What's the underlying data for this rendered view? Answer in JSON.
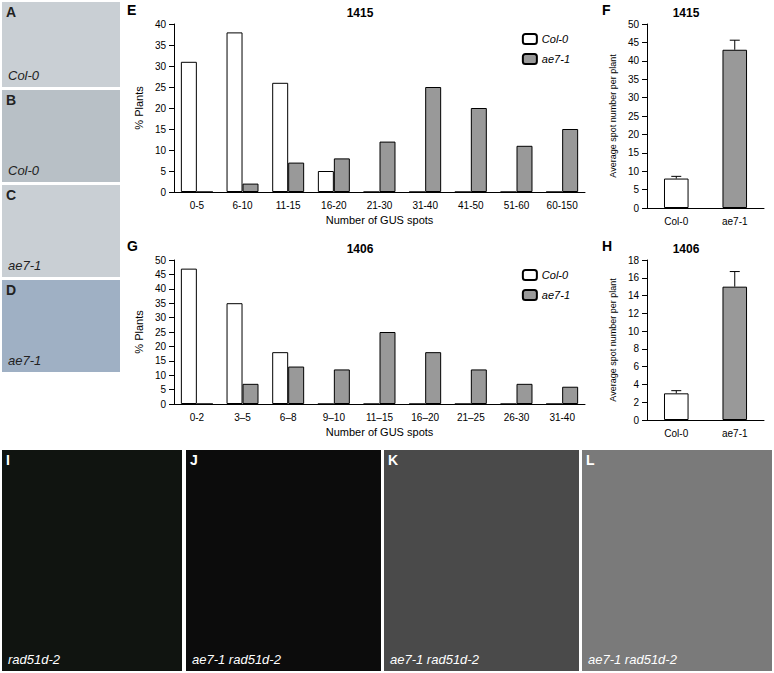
{
  "panels": [
    {
      "letter": "A",
      "label": "Col-0"
    },
    {
      "letter": "B",
      "label": "Col-0"
    },
    {
      "letter": "C",
      "label": "ae7-1"
    },
    {
      "letter": "D",
      "label": "ae7-1"
    },
    {
      "letter": "I",
      "label": "rad51d-2"
    },
    {
      "letter": "J",
      "label": "ae7-1 rad51d-2"
    },
    {
      "letter": "K",
      "label": "ae7-1 rad51d-2"
    },
    {
      "letter": "L",
      "label": "ae7-1 rad51d-2"
    }
  ],
  "chart_panel_letters": [
    "E",
    "F",
    "G",
    "H"
  ],
  "chart_data": [
    {
      "type": "bar",
      "title": "1415",
      "x_label": "Number of GUS spots",
      "y_label": "% Plants",
      "categories": [
        "0-5",
        "6-10",
        "11-15",
        "16-20",
        "21-30",
        "31-40",
        "41-50",
        "51-60",
        "60-150"
      ],
      "series": [
        {
          "name": "Col-0",
          "color": "#ffffff",
          "values": [
            31,
            38,
            26,
            5,
            0,
            0,
            0,
            0,
            0
          ]
        },
        {
          "name": "ae7-1",
          "color": "#999999",
          "values": [
            0,
            2,
            7,
            8,
            12,
            25,
            20,
            11,
            15
          ]
        }
      ],
      "ylim": [
        0,
        40
      ],
      "yticks": [
        0,
        5,
        10,
        15,
        20,
        25,
        30,
        35,
        40
      ],
      "legend": "top-right",
      "grid": false
    },
    {
      "type": "bar",
      "title": "1415",
      "y_label": "Average spot number per plant",
      "categories": [
        "Col-0",
        "ae7-1"
      ],
      "values": [
        8,
        43
      ],
      "errors": [
        0.6,
        2.6
      ],
      "colors": [
        "#ffffff",
        "#999999"
      ],
      "ylim": [
        0,
        50
      ],
      "yticks": [
        0,
        5,
        10,
        15,
        20,
        25,
        30,
        35,
        40,
        45,
        50
      ],
      "grid": false
    },
    {
      "type": "bar",
      "title": "1406",
      "x_label": "Number of GUS spots",
      "y_label": "% Plants",
      "categories": [
        "0-2",
        "3–5",
        "6–8",
        "9–10",
        "11–15",
        "16–20",
        "21–25",
        "26-30",
        "31-40"
      ],
      "series": [
        {
          "name": "Col-0",
          "color": "#ffffff",
          "values": [
            47,
            35,
            18,
            0,
            0,
            0,
            0,
            0,
            0
          ]
        },
        {
          "name": "ae7-1",
          "color": "#999999",
          "values": [
            0,
            7,
            13,
            12,
            25,
            18,
            12,
            7,
            6
          ]
        }
      ],
      "ylim": [
        0,
        50
      ],
      "yticks": [
        0,
        5,
        10,
        15,
        20,
        25,
        30,
        35,
        40,
        45,
        50
      ],
      "legend": "top-right",
      "grid": false
    },
    {
      "type": "bar",
      "title": "1406",
      "y_label": "Average spot number per plant",
      "categories": [
        "Col-0",
        "ae7-1"
      ],
      "values": [
        3,
        15
      ],
      "errors": [
        0.3,
        1.7
      ],
      "colors": [
        "#ffffff",
        "#999999"
      ],
      "ylim": [
        0,
        18
      ],
      "yticks": [
        0,
        2,
        4,
        6,
        8,
        10,
        12,
        14,
        16,
        18
      ],
      "grid": false
    }
  ]
}
